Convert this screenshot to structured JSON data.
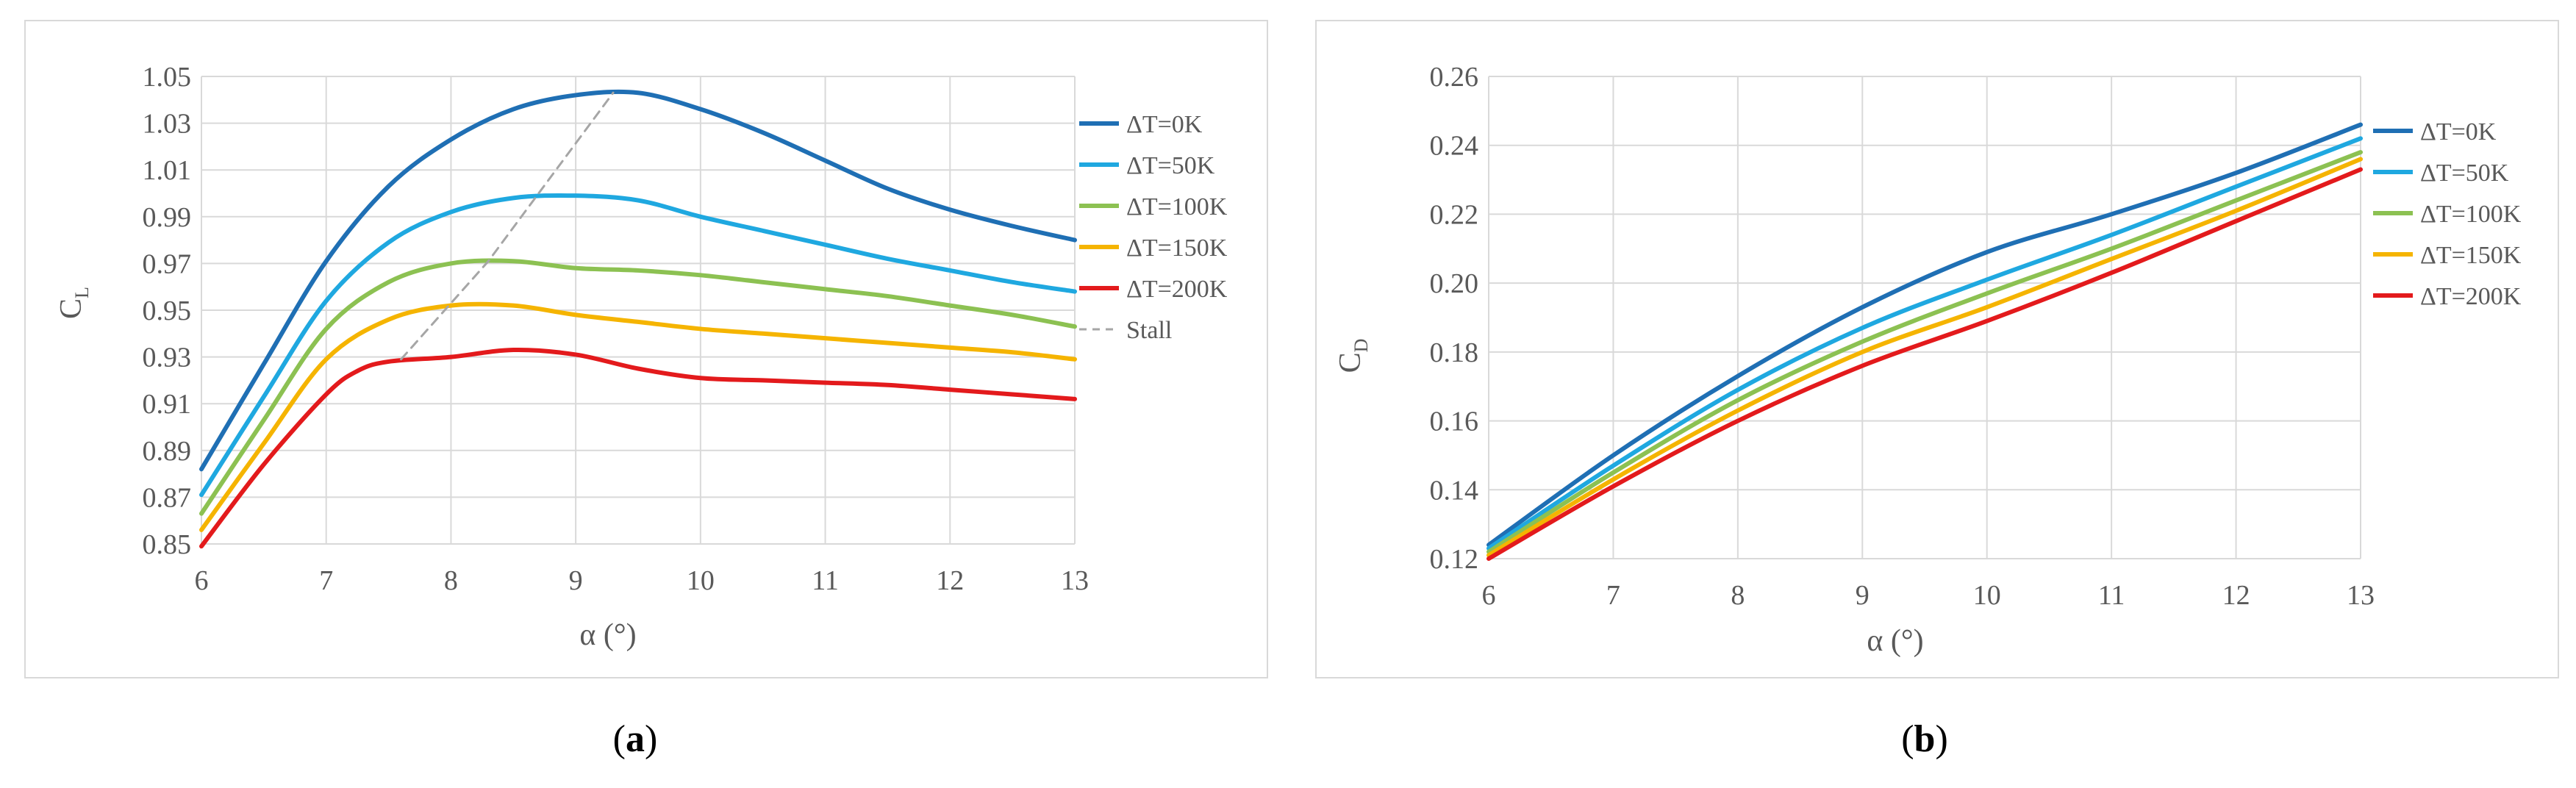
{
  "chart_data": [
    {
      "type": "line",
      "panel_label": "a",
      "xlabel": "α (°)",
      "ylabel_main": "C",
      "ylabel_sub": "L",
      "xlim": [
        6,
        13
      ],
      "ylim": [
        0.85,
        1.05
      ],
      "xticks": [
        "6",
        "7",
        "8",
        "9",
        "10",
        "11",
        "12",
        "13"
      ],
      "yticks": [
        "0.85",
        "0.87",
        "0.89",
        "0.91",
        "0.93",
        "0.95",
        "0.97",
        "0.99",
        "1.01",
        "1.03",
        "1.05"
      ],
      "grid": true,
      "legend_position": "right",
      "series": [
        {
          "name": "ΔT=0K",
          "color": "#1f6fb4",
          "x": [
            6,
            6.5,
            7,
            7.5,
            8,
            8.5,
            9,
            9.5,
            10,
            10.5,
            11,
            11.5,
            12,
            12.5,
            13
          ],
          "values": [
            0.882,
            0.927,
            0.971,
            1.003,
            1.023,
            1.036,
            1.042,
            1.043,
            1.036,
            1.026,
            1.014,
            1.002,
            0.993,
            0.986,
            0.98
          ]
        },
        {
          "name": "ΔT=50K",
          "color": "#1fa8e0",
          "x": [
            6,
            6.5,
            7,
            7.5,
            8,
            8.5,
            9,
            9.5,
            10,
            10.5,
            11,
            11.5,
            12,
            12.5,
            13
          ],
          "values": [
            0.871,
            0.913,
            0.954,
            0.979,
            0.992,
            0.998,
            0.999,
            0.997,
            0.99,
            0.984,
            0.978,
            0.972,
            0.967,
            0.962,
            0.958
          ]
        },
        {
          "name": "ΔT=100K",
          "color": "#8cc152",
          "x": [
            6,
            6.5,
            7,
            7.5,
            8,
            8.5,
            9,
            9.5,
            10,
            10.5,
            11,
            11.5,
            12,
            12.5,
            13
          ],
          "values": [
            0.863,
            0.903,
            0.942,
            0.962,
            0.97,
            0.971,
            0.968,
            0.967,
            0.965,
            0.962,
            0.959,
            0.956,
            0.952,
            0.948,
            0.943
          ]
        },
        {
          "name": "ΔT=150K",
          "color": "#f5b400",
          "x": [
            6,
            6.5,
            7,
            7.5,
            8,
            8.5,
            9,
            9.5,
            10,
            10.5,
            11,
            11.5,
            12,
            12.5,
            13
          ],
          "values": [
            0.856,
            0.893,
            0.929,
            0.946,
            0.952,
            0.952,
            0.948,
            0.945,
            0.942,
            0.94,
            0.938,
            0.936,
            0.934,
            0.932,
            0.929
          ]
        },
        {
          "name": "ΔT=200K",
          "color": "#e31a1c",
          "x": [
            6,
            6.5,
            7,
            7.25,
            7.5,
            8,
            8.5,
            9,
            9.5,
            10,
            10.5,
            11,
            11.5,
            12,
            12.5,
            13
          ],
          "values": [
            0.849,
            0.884,
            0.914,
            0.924,
            0.928,
            0.93,
            0.933,
            0.931,
            0.925,
            0.921,
            0.92,
            0.919,
            0.918,
            0.916,
            0.914,
            0.912
          ]
        },
        {
          "name": "Stall",
          "color": "#a6a6a6",
          "dashed": true,
          "x": [
            7.6,
            8.3,
            9.3
          ],
          "values": [
            0.929,
            0.971,
            1.043
          ]
        }
      ]
    },
    {
      "type": "line",
      "panel_label": "b",
      "xlabel": "α (°)",
      "ylabel_main": "C",
      "ylabel_sub": "D",
      "xlim": [
        6,
        13
      ],
      "ylim": [
        0.12,
        0.26
      ],
      "xticks": [
        "6",
        "7",
        "8",
        "9",
        "10",
        "11",
        "12",
        "13"
      ],
      "yticks": [
        "0.12",
        "0.14",
        "0.16",
        "0.18",
        "0.20",
        "0.22",
        "0.24",
        "0.26"
      ],
      "grid": true,
      "legend_position": "right",
      "series": [
        {
          "name": "ΔT=0K",
          "color": "#1f6fb4",
          "x": [
            6,
            7,
            8,
            9,
            10,
            11,
            12,
            13
          ],
          "values": [
            0.124,
            0.15,
            0.173,
            0.193,
            0.209,
            0.22,
            0.232,
            0.246
          ]
        },
        {
          "name": "ΔT=50K",
          "color": "#1fa8e0",
          "x": [
            6,
            7,
            8,
            9,
            10,
            11,
            12,
            13
          ],
          "values": [
            0.123,
            0.147,
            0.169,
            0.187,
            0.201,
            0.214,
            0.228,
            0.242
          ]
        },
        {
          "name": "ΔT=100K",
          "color": "#8cc152",
          "x": [
            6,
            7,
            8,
            9,
            10,
            11,
            12,
            13
          ],
          "values": [
            0.122,
            0.145,
            0.166,
            0.183,
            0.197,
            0.21,
            0.224,
            0.238
          ]
        },
        {
          "name": "ΔT=150K",
          "color": "#f5b400",
          "x": [
            6,
            7,
            8,
            9,
            10,
            11,
            12,
            13
          ],
          "values": [
            0.121,
            0.143,
            0.163,
            0.18,
            0.193,
            0.207,
            0.221,
            0.236
          ]
        },
        {
          "name": "ΔT=200K",
          "color": "#e31a1c",
          "x": [
            6,
            7,
            8,
            9,
            10,
            11,
            12,
            13
          ],
          "values": [
            0.12,
            0.141,
            0.16,
            0.176,
            0.189,
            0.203,
            0.218,
            0.233
          ]
        }
      ]
    }
  ]
}
